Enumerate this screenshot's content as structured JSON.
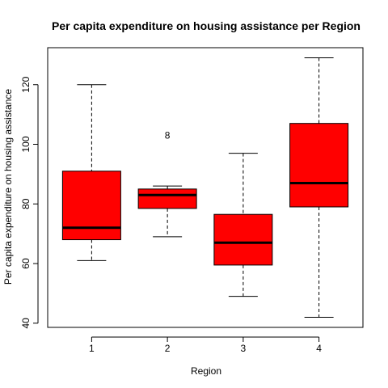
{
  "chart_data": {
    "type": "boxplot",
    "title": "Per capita expenditure on housing assistance per Region",
    "xlabel": "Region",
    "ylabel": "Per capita expenditure on housing assistance",
    "categories": [
      "1",
      "2",
      "3",
      "4"
    ],
    "y_ticks": [
      "40",
      "60",
      "80",
      "100",
      "120"
    ],
    "ylim": [
      38.6,
      132.4
    ],
    "grid": false,
    "box_color": "#ff0000",
    "boxes": [
      {
        "category": "1",
        "whisker_low": 61,
        "q1": 68,
        "median": 72,
        "q3": 91,
        "whisker_high": 120,
        "outliers": []
      },
      {
        "category": "2",
        "whisker_low": 69,
        "q1": 78.5,
        "median": 83,
        "q3": 85,
        "whisker_high": 86,
        "outliers": [
          {
            "value": 103,
            "label": "8"
          }
        ]
      },
      {
        "category": "3",
        "whisker_low": 49,
        "q1": 59.5,
        "median": 67,
        "q3": 76.5,
        "whisker_high": 97,
        "outliers": []
      },
      {
        "category": "4",
        "whisker_low": 42,
        "q1": 79,
        "median": 87,
        "q3": 107,
        "whisker_high": 129,
        "outliers": []
      }
    ]
  }
}
